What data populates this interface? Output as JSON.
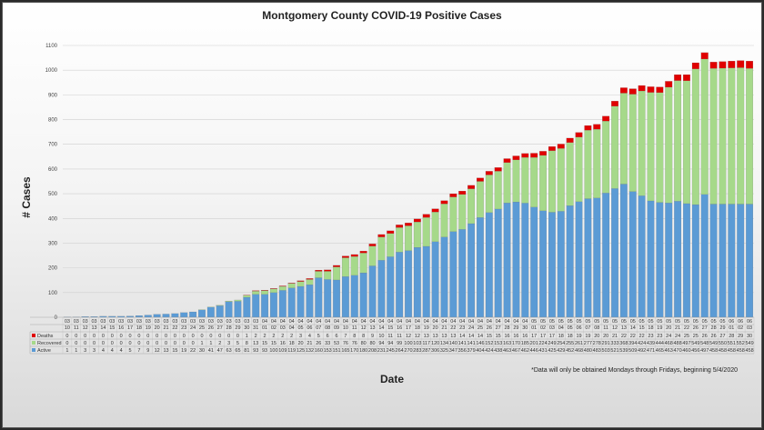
{
  "chart_data": {
    "type": "bar",
    "stacked": true,
    "title": "Montgomery County COVID-19 Positive Cases",
    "xlabel": "Date",
    "ylabel": "# Cases",
    "ylim": [
      0,
      1100
    ],
    "yticks": [
      0,
      100,
      200,
      300,
      400,
      500,
      600,
      700,
      800,
      900,
      1000,
      1100
    ],
    "note": "*Data will only be obtained Mondays through Fridays, beginning 5/4/2020",
    "legend_placement": "left of data table",
    "categories": [
      [
        "03",
        "10"
      ],
      [
        "03",
        "11"
      ],
      [
        "03",
        "12"
      ],
      [
        "03",
        "13"
      ],
      [
        "03",
        "14"
      ],
      [
        "03",
        "15"
      ],
      [
        "03",
        "16"
      ],
      [
        "03",
        "17"
      ],
      [
        "03",
        "18"
      ],
      [
        "03",
        "19"
      ],
      [
        "03",
        "20"
      ],
      [
        "03",
        "21"
      ],
      [
        "03",
        "22"
      ],
      [
        "03",
        "23"
      ],
      [
        "03",
        "24"
      ],
      [
        "03",
        "25"
      ],
      [
        "03",
        "26"
      ],
      [
        "03",
        "27"
      ],
      [
        "03",
        "28"
      ],
      [
        "03",
        "29"
      ],
      [
        "03",
        "30"
      ],
      [
        "03",
        "31"
      ],
      [
        "04",
        "01"
      ],
      [
        "04",
        "02"
      ],
      [
        "04",
        "03"
      ],
      [
        "04",
        "04"
      ],
      [
        "04",
        "05"
      ],
      [
        "04",
        "06"
      ],
      [
        "04",
        "07"
      ],
      [
        "04",
        "08"
      ],
      [
        "04",
        "09"
      ],
      [
        "04",
        "10"
      ],
      [
        "04",
        "11"
      ],
      [
        "04",
        "12"
      ],
      [
        "04",
        "13"
      ],
      [
        "04",
        "14"
      ],
      [
        "04",
        "15"
      ],
      [
        "04",
        "16"
      ],
      [
        "04",
        "17"
      ],
      [
        "04",
        "18"
      ],
      [
        "04",
        "19"
      ],
      [
        "04",
        "20"
      ],
      [
        "04",
        "21"
      ],
      [
        "04",
        "22"
      ],
      [
        "04",
        "23"
      ],
      [
        "04",
        "24"
      ],
      [
        "04",
        "25"
      ],
      [
        "04",
        "26"
      ],
      [
        "04",
        "27"
      ],
      [
        "04",
        "28"
      ],
      [
        "04",
        "29"
      ],
      [
        "04",
        "30"
      ],
      [
        "05",
        "01"
      ],
      [
        "05",
        "02"
      ],
      [
        "05",
        "03"
      ],
      [
        "05",
        "04"
      ],
      [
        "05",
        "05"
      ],
      [
        "05",
        "06"
      ],
      [
        "05",
        "07"
      ],
      [
        "05",
        "08"
      ],
      [
        "05",
        "11"
      ],
      [
        "05",
        "12"
      ],
      [
        "05",
        "13"
      ],
      [
        "05",
        "14"
      ],
      [
        "05",
        "15"
      ],
      [
        "05",
        "18"
      ],
      [
        "05",
        "19"
      ],
      [
        "05",
        "20"
      ],
      [
        "05",
        "21"
      ],
      [
        "05",
        "22"
      ],
      [
        "05",
        "26"
      ],
      [
        "05",
        "27"
      ],
      [
        "05",
        "28"
      ],
      [
        "05",
        "29"
      ],
      [
        "06",
        "01"
      ],
      [
        "06",
        "02"
      ],
      [
        "06",
        "03"
      ]
    ],
    "series": [
      {
        "name": "Deaths",
        "color": "#e00000",
        "values": [
          0,
          0,
          0,
          0,
          0,
          0,
          0,
          0,
          0,
          0,
          0,
          0,
          0,
          0,
          0,
          0,
          0,
          0,
          0,
          0,
          1,
          2,
          2,
          2,
          2,
          2,
          3,
          4,
          5,
          6,
          6,
          7,
          8,
          8,
          9,
          10,
          11,
          11,
          12,
          12,
          13,
          13,
          13,
          13,
          14,
          14,
          14,
          15,
          15,
          16,
          16,
          16,
          17,
          17,
          17,
          18,
          18,
          19,
          19,
          20,
          20,
          21,
          22,
          22,
          22,
          23,
          23,
          24,
          24,
          25,
          25,
          26,
          26,
          27,
          28,
          29,
          30
        ]
      },
      {
        "name": "Recovered",
        "color": "#a6d98a",
        "values": [
          0,
          0,
          0,
          0,
          0,
          0,
          0,
          0,
          0,
          0,
          0,
          0,
          0,
          0,
          0,
          1,
          1,
          2,
          3,
          5,
          8,
          13,
          15,
          15,
          16,
          18,
          20,
          21,
          26,
          33,
          53,
          76,
          76,
          80,
          80,
          94,
          94,
          99,
          100,
          103,
          117,
          120,
          134,
          140,
          141,
          141,
          146,
          152,
          153,
          163,
          170,
          185,
          201,
          224,
          249,
          254,
          255,
          261,
          277,
          278,
          291,
          333,
          368,
          394,
          424,
          439,
          444,
          468,
          488,
          497,
          549,
          548,
          549,
          550,
          551,
          552,
          549
        ]
      },
      {
        "name": "Active",
        "color": "#5b9bd5",
        "values": [
          1,
          1,
          3,
          3,
          4,
          4,
          4,
          5,
          7,
          9,
          12,
          13,
          15,
          19,
          22,
          30,
          41,
          47,
          63,
          65,
          81,
          93,
          93,
          100,
          109,
          119,
          125,
          132,
          160,
          153,
          151,
          165,
          170,
          180,
          208,
          231,
          245,
          264,
          270,
          283,
          287,
          306,
          325,
          347,
          356,
          379,
          404,
          424,
          438,
          463,
          467,
          462,
          446,
          431,
          425,
          429,
          452,
          468,
          480,
          483,
          503,
          521,
          539,
          509,
          492,
          471,
          465,
          463,
          470,
          460,
          456,
          497,
          458,
          458,
          458,
          458,
          458
        ]
      }
    ],
    "table_row_labels": [
      "Deaths",
      "Recovered",
      "Active"
    ]
  }
}
